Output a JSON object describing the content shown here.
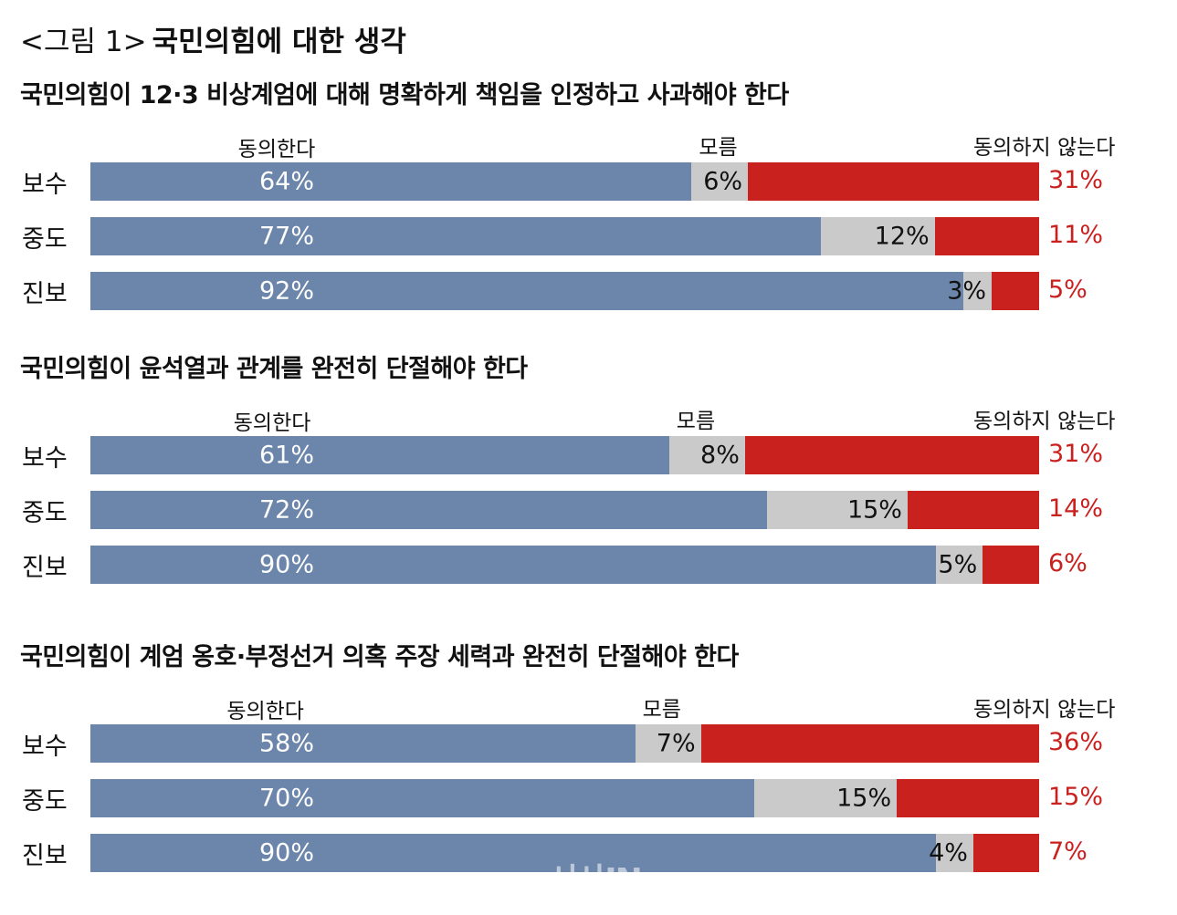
{
  "figure": {
    "label": "<그림 1>",
    "title": "국민의힘에 대한 생각"
  },
  "colors": {
    "agree": "#6b86aa",
    "unknown": "#cacaca",
    "disagree": "#c9211e"
  },
  "watermark": "시사IN",
  "chart_data": [
    {
      "type": "bar",
      "title": "국민의힘이 12·3 비상계엄에 대해 명확하게 책임을 인정하고 사과해야 한다",
      "series_names": [
        "동의한다",
        "모름",
        "동의하지 않는다"
      ],
      "categories": [
        "보수",
        "중도",
        "진보"
      ],
      "series": [
        {
          "name": "동의한다",
          "values": [
            64,
            77,
            92
          ]
        },
        {
          "name": "모름",
          "values": [
            6,
            12,
            3
          ]
        },
        {
          "name": "동의하지 않는다",
          "values": [
            31,
            11,
            5
          ]
        }
      ],
      "labels": [
        [
          "64%",
          "6%",
          "31%"
        ],
        [
          "77%",
          "12%",
          "11%"
        ],
        [
          "92%",
          "3%",
          "5%"
        ]
      ]
    },
    {
      "type": "bar",
      "title": "국민의힘이 윤석열과 관계를 완전히 단절해야 한다",
      "series_names": [
        "동의한다",
        "모름",
        "동의하지 않는다"
      ],
      "categories": [
        "보수",
        "중도",
        "진보"
      ],
      "series": [
        {
          "name": "동의한다",
          "values": [
            61,
            72,
            90
          ]
        },
        {
          "name": "모름",
          "values": [
            8,
            15,
            5
          ]
        },
        {
          "name": "동의하지 않는다",
          "values": [
            31,
            14,
            6
          ]
        }
      ],
      "labels": [
        [
          "61%",
          "8%",
          "31%"
        ],
        [
          "72%",
          "15%",
          "14%"
        ],
        [
          "90%",
          "5%",
          "6%"
        ]
      ]
    },
    {
      "type": "bar",
      "title": "국민의힘이 계엄 옹호·부정선거 의혹 주장 세력과 완전히 단절해야 한다",
      "series_names": [
        "동의한다",
        "모름",
        "동의하지 않는다"
      ],
      "categories": [
        "보수",
        "중도",
        "진보"
      ],
      "series": [
        {
          "name": "동의한다",
          "values": [
            58,
            70,
            90
          ]
        },
        {
          "name": "모름",
          "values": [
            7,
            15,
            4
          ]
        },
        {
          "name": "동의하지 않는다",
          "values": [
            36,
            15,
            7
          ]
        }
      ],
      "labels": [
        [
          "58%",
          "7%",
          "36%"
        ],
        [
          "70%",
          "15%",
          "15%"
        ],
        [
          "90%",
          "4%",
          "7%"
        ]
      ]
    }
  ]
}
